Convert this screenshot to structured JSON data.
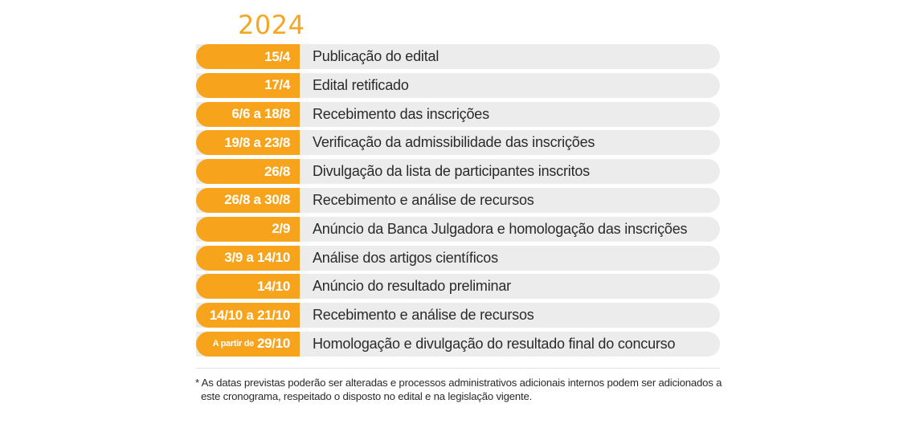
{
  "year": "2024",
  "schedule": [
    {
      "date": "15/4",
      "event": "Publicação do edital"
    },
    {
      "date": "17/4",
      "event": "Edital retificado"
    },
    {
      "date": "6/6 a 18/8",
      "event": "Recebimento das inscrições"
    },
    {
      "date": "19/8 a 23/8",
      "event": "Verificação da admissibilidade das inscrições"
    },
    {
      "date": "26/8",
      "event": "Divulgação da lista de participantes inscritos"
    },
    {
      "date": "26/8 a 30/8",
      "event": "Recebimento e análise de recursos"
    },
    {
      "date": "2/9",
      "event": "Anúncio da Banca Julgadora e homologação das inscrições"
    },
    {
      "date": "3/9 a 14/10",
      "event": "Análise dos artigos científicos"
    },
    {
      "date": "14/10",
      "event": "Anúncio do resultado preliminar"
    },
    {
      "date": "14/10 a 21/10",
      "event": "Recebimento e análise de recursos"
    },
    {
      "date_prefix": "A partir de",
      "date": "29/10",
      "event": "Homologação e divulgação do resultado final do concurso"
    }
  ],
  "footnote": {
    "line1": "* As datas previstas poderão ser alteradas e processos administrativos adicionais internos podem ser adicionados a",
    "line2": "este cronograma, respeitado o disposto no edital e na legislação vigente."
  },
  "colors": {
    "accent": "#f7a41c",
    "year": "#f5a623",
    "row_background": "#ececec",
    "text": "#2a2a2a"
  }
}
